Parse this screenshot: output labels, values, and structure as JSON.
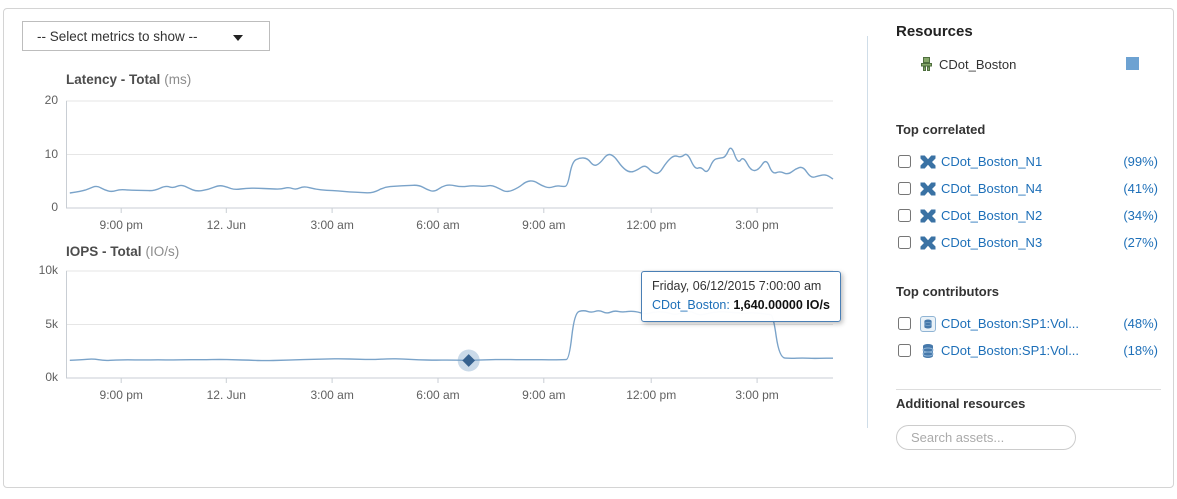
{
  "controls": {
    "metrics_select_label": "-- Select metrics to show --"
  },
  "tooltip": {
    "date": "Friday, 06/12/2015 7:00:00 am",
    "series_label": "CDot_Boston:",
    "value": "1,640.00000 IO/s"
  },
  "sidebar": {
    "resources_title": "Resources",
    "resource": {
      "name": "CDot_Boston",
      "icon": "storage-system-icon",
      "swatch_color": "#6da2d2"
    },
    "top_correlated": {
      "title": "Top correlated",
      "items": [
        {
          "icon": "node-icon",
          "name": "CDot_Boston_N1",
          "pct": "(99%)"
        },
        {
          "icon": "node-icon",
          "name": "CDot_Boston_N4",
          "pct": "(41%)"
        },
        {
          "icon": "node-icon",
          "name": "CDot_Boston_N2",
          "pct": "(34%)"
        },
        {
          "icon": "node-icon",
          "name": "CDot_Boston_N3",
          "pct": "(27%)"
        }
      ]
    },
    "top_contributors": {
      "title": "Top contributors",
      "items": [
        {
          "icon": "internal-volume-icon",
          "name": "CDot_Boston:SP1:Vol...",
          "pct": "(48%)"
        },
        {
          "icon": "volume-icon",
          "name": "CDot_Boston:SP1:Vol...",
          "pct": "(18%)"
        }
      ]
    },
    "additional_resources_title": "Additional resources",
    "search_placeholder": "Search assets..."
  },
  "chart_data": [
    {
      "type": "line",
      "title": "Latency - Total",
      "unit": "(ms)",
      "ylim": [
        0,
        20
      ],
      "grid": true,
      "legend_position": "none",
      "yticks": [
        {
          "value": 0,
          "label": "0"
        },
        {
          "value": 10,
          "label": "10"
        },
        {
          "value": 20,
          "label": "20"
        }
      ],
      "xticks": [
        {
          "pos": 0.072,
          "label": "9:00 pm"
        },
        {
          "pos": 0.209,
          "label": "12. Jun"
        },
        {
          "pos": 0.347,
          "label": "3:00 am"
        },
        {
          "pos": 0.485,
          "label": "6:00 am"
        },
        {
          "pos": 0.623,
          "label": "9:00 am"
        },
        {
          "pos": 0.763,
          "label": "12:00 pm"
        },
        {
          "pos": 0.901,
          "label": "3:00 pm"
        }
      ],
      "series": [
        {
          "name": "CDot_Boston",
          "color": "#7aa3c9",
          "points": [
            [
              0.005,
              2.8
            ],
            [
              0.02,
              3.1
            ],
            [
              0.03,
              3.6
            ],
            [
              0.04,
              4.2
            ],
            [
              0.05,
              3.4
            ],
            [
              0.06,
              3.0
            ],
            [
              0.07,
              3.5
            ],
            [
              0.085,
              3.3
            ],
            [
              0.1,
              3.3
            ],
            [
              0.115,
              3.2
            ],
            [
              0.13,
              4.2
            ],
            [
              0.14,
              3.7
            ],
            [
              0.15,
              4.4
            ],
            [
              0.16,
              3.7
            ],
            [
              0.17,
              3.1
            ],
            [
              0.185,
              3.4
            ],
            [
              0.2,
              4.3
            ],
            [
              0.21,
              3.9
            ],
            [
              0.22,
              3.4
            ],
            [
              0.235,
              3.7
            ],
            [
              0.25,
              3.7
            ],
            [
              0.265,
              3.6
            ],
            [
              0.28,
              3.5
            ],
            [
              0.29,
              3.9
            ],
            [
              0.3,
              3.4
            ],
            [
              0.31,
              4.1
            ],
            [
              0.325,
              3.5
            ],
            [
              0.34,
              3.3
            ],
            [
              0.355,
              3.2
            ],
            [
              0.37,
              3.0
            ],
            [
              0.385,
              2.9
            ],
            [
              0.4,
              2.8
            ],
            [
              0.415,
              3.9
            ],
            [
              0.43,
              4.1
            ],
            [
              0.445,
              4.2
            ],
            [
              0.46,
              4.3
            ],
            [
              0.47,
              3.5
            ],
            [
              0.48,
              3.0
            ],
            [
              0.49,
              4.0
            ],
            [
              0.5,
              4.4
            ],
            [
              0.515,
              3.9
            ],
            [
              0.53,
              4.2
            ],
            [
              0.545,
              4.0
            ],
            [
              0.555,
              4.3
            ],
            [
              0.565,
              3.6
            ],
            [
              0.575,
              2.9
            ],
            [
              0.59,
              3.8
            ],
            [
              0.6,
              5.0
            ],
            [
              0.61,
              5.1
            ],
            [
              0.62,
              4.2
            ],
            [
              0.63,
              3.7
            ],
            [
              0.64,
              4.2
            ],
            [
              0.648,
              4.0
            ],
            [
              0.654,
              4.1
            ],
            [
              0.66,
              8.7
            ],
            [
              0.67,
              9.4
            ],
            [
              0.68,
              9.3
            ],
            [
              0.688,
              7.8
            ],
            [
              0.696,
              8.3
            ],
            [
              0.706,
              10.2
            ],
            [
              0.715,
              9.7
            ],
            [
              0.725,
              7.6
            ],
            [
              0.735,
              6.6
            ],
            [
              0.745,
              7.1
            ],
            [
              0.755,
              8.1
            ],
            [
              0.764,
              6.7
            ],
            [
              0.773,
              6.3
            ],
            [
              0.783,
              8.6
            ],
            [
              0.793,
              9.9
            ],
            [
              0.802,
              9.4
            ],
            [
              0.81,
              10.4
            ],
            [
              0.82,
              7.2
            ],
            [
              0.828,
              7.7
            ],
            [
              0.836,
              6.4
            ],
            [
              0.844,
              9.1
            ],
            [
              0.852,
              9.3
            ],
            [
              0.86,
              9.5
            ],
            [
              0.867,
              11.9
            ],
            [
              0.876,
              8.2
            ],
            [
              0.883,
              9.7
            ],
            [
              0.893,
              6.9
            ],
            [
              0.903,
              7.1
            ],
            [
              0.913,
              9.3
            ],
            [
              0.921,
              6.3
            ],
            [
              0.931,
              6.9
            ],
            [
              0.941,
              6.2
            ],
            [
              0.951,
              7.3
            ],
            [
              0.961,
              7.8
            ],
            [
              0.971,
              5.6
            ],
            [
              0.981,
              6.0
            ],
            [
              0.991,
              6.3
            ],
            [
              1.0,
              5.4
            ]
          ]
        }
      ]
    },
    {
      "type": "line",
      "title": "IOPS - Total",
      "unit": "(IO/s)",
      "ylim": [
        0,
        10000
      ],
      "grid": true,
      "legend_position": "none",
      "yticks": [
        {
          "value": 0,
          "label": "0k"
        },
        {
          "value": 5000,
          "label": "5k"
        },
        {
          "value": 10000,
          "label": "10k"
        }
      ],
      "xticks": [
        {
          "pos": 0.072,
          "label": "9:00 pm"
        },
        {
          "pos": 0.209,
          "label": "12. Jun"
        },
        {
          "pos": 0.347,
          "label": "3:00 am"
        },
        {
          "pos": 0.485,
          "label": "6:00 am"
        },
        {
          "pos": 0.623,
          "label": "9:00 am"
        },
        {
          "pos": 0.763,
          "label": "12:00 pm"
        },
        {
          "pos": 0.901,
          "label": "3:00 pm"
        }
      ],
      "marker": {
        "pos": 0.525,
        "value": 1640,
        "color": "#35618f",
        "halo_color": "rgba(122,163,201,0.4)"
      },
      "series": [
        {
          "name": "CDot_Boston",
          "color": "#7aa3c9",
          "points": [
            [
              0.005,
              1650
            ],
            [
              0.02,
              1700
            ],
            [
              0.035,
              1800
            ],
            [
              0.05,
              1620
            ],
            [
              0.065,
              1680
            ],
            [
              0.08,
              1700
            ],
            [
              0.1,
              1680
            ],
            [
              0.12,
              1700
            ],
            [
              0.14,
              1690
            ],
            [
              0.16,
              1720
            ],
            [
              0.18,
              1700
            ],
            [
              0.2,
              1740
            ],
            [
              0.22,
              1700
            ],
            [
              0.24,
              1660
            ],
            [
              0.26,
              1620
            ],
            [
              0.28,
              1650
            ],
            [
              0.3,
              1700
            ],
            [
              0.32,
              1740
            ],
            [
              0.34,
              1780
            ],
            [
              0.36,
              1800
            ],
            [
              0.38,
              1760
            ],
            [
              0.4,
              1720
            ],
            [
              0.42,
              1800
            ],
            [
              0.44,
              1780
            ],
            [
              0.46,
              1700
            ],
            [
              0.48,
              1660
            ],
            [
              0.5,
              1680
            ],
            [
              0.525,
              1640
            ],
            [
              0.55,
              1700
            ],
            [
              0.57,
              1730
            ],
            [
              0.59,
              1700
            ],
            [
              0.61,
              1720
            ],
            [
              0.63,
              1700
            ],
            [
              0.648,
              1710
            ],
            [
              0.656,
              1720
            ],
            [
              0.663,
              6100
            ],
            [
              0.675,
              6350
            ],
            [
              0.685,
              6100
            ],
            [
              0.695,
              6350
            ],
            [
              0.705,
              6000
            ],
            [
              0.715,
              6300
            ],
            [
              0.725,
              6150
            ],
            [
              0.735,
              6250
            ],
            [
              0.745,
              6200
            ],
            [
              0.755,
              5950
            ],
            [
              0.765,
              6150
            ],
            [
              0.775,
              6200
            ],
            [
              0.785,
              6100
            ],
            [
              0.795,
              5900
            ],
            [
              0.805,
              6150
            ],
            [
              0.815,
              6250
            ],
            [
              0.825,
              5850
            ],
            [
              0.835,
              6000
            ],
            [
              0.845,
              6150
            ],
            [
              0.855,
              6200
            ],
            [
              0.865,
              6150
            ],
            [
              0.875,
              6100
            ],
            [
              0.885,
              6050
            ],
            [
              0.895,
              6100
            ],
            [
              0.905,
              6050
            ],
            [
              0.915,
              5950
            ],
            [
              0.922,
              5900
            ],
            [
              0.93,
              1900
            ],
            [
              0.945,
              1820
            ],
            [
              0.96,
              1880
            ],
            [
              0.975,
              1820
            ],
            [
              0.99,
              1860
            ],
            [
              1.0,
              1850
            ]
          ]
        }
      ]
    }
  ]
}
